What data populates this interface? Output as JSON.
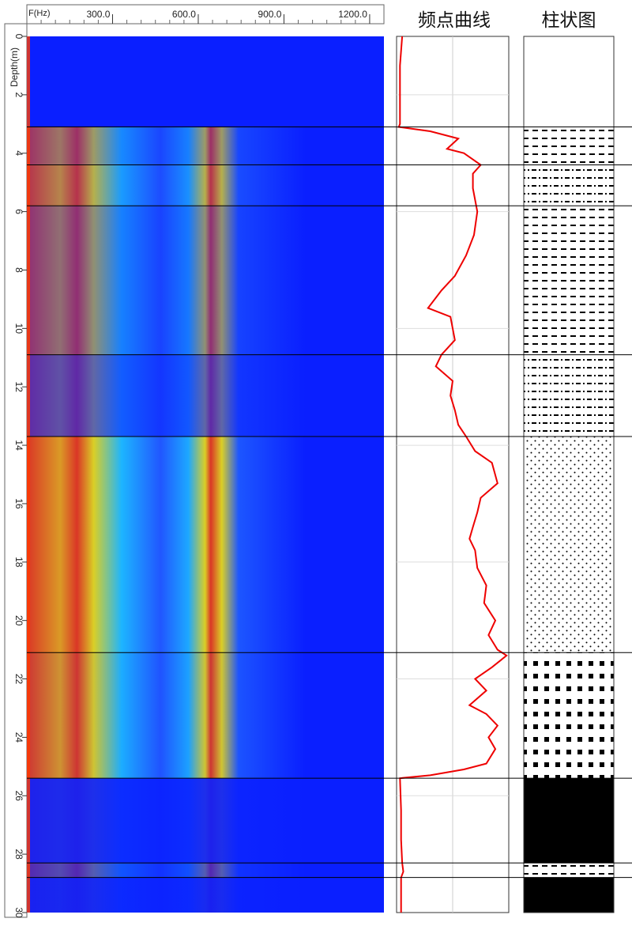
{
  "header": {
    "freq_axis_label": "F(Hz)",
    "freq_ticks": [
      "300.0",
      "600.0",
      "900.0",
      "1200.0"
    ],
    "depth_axis_label": "Depth(m)",
    "track_title": "频点曲线",
    "column_title": "柱状图"
  },
  "colors": {
    "background_blue": "#0a1fff",
    "high": "#ff3a00",
    "mid": "#ffee00",
    "low": "#20d0ff",
    "curve": "#ee0000",
    "boundary": "#000000"
  },
  "chart_data": [
    {
      "type": "heatmap",
      "x_axis": {
        "label": "F(Hz)",
        "range": [
          0,
          1200
        ],
        "ticks": [
          300,
          600,
          900,
          1200
        ]
      },
      "y_axis": {
        "label": "Depth(m)",
        "range": [
          0,
          30
        ],
        "ticks": [
          0,
          2,
          4,
          6,
          8,
          10,
          12,
          14,
          16,
          18,
          20,
          22,
          24,
          26,
          28,
          30
        ]
      },
      "depth_boundaries": [
        3.1,
        4.4,
        5.8,
        10.9,
        13.7,
        21.1,
        25.4,
        28.3,
        28.8
      ],
      "bands": [
        {
          "from": 0,
          "to": 3.1,
          "intensity": 0.0
        },
        {
          "from": 3.1,
          "to": 4.4,
          "intensity": 0.6
        },
        {
          "from": 4.4,
          "to": 5.8,
          "intensity": 0.7
        },
        {
          "from": 5.8,
          "to": 10.9,
          "intensity": 0.55
        },
        {
          "from": 10.9,
          "to": 13.7,
          "intensity": 0.35
        },
        {
          "from": 13.7,
          "to": 21.1,
          "intensity": 0.85
        },
        {
          "from": 21.1,
          "to": 25.4,
          "intensity": 0.8
        },
        {
          "from": 25.4,
          "to": 28.3,
          "intensity": 0.08
        },
        {
          "from": 28.3,
          "to": 28.8,
          "intensity": 0.3
        },
        {
          "from": 28.8,
          "to": 30,
          "intensity": 0.06
        }
      ]
    },
    {
      "type": "line",
      "title": "频点曲线",
      "y_axis": {
        "range": [
          0,
          30
        ]
      },
      "x_range": [
        0,
        1
      ],
      "points": [
        [
          0.05,
          0.0
        ],
        [
          0.03,
          1.0
        ],
        [
          0.03,
          2.0
        ],
        [
          0.03,
          3.0
        ],
        [
          0.02,
          3.1
        ],
        [
          0.3,
          3.25
        ],
        [
          0.55,
          3.5
        ],
        [
          0.45,
          3.85
        ],
        [
          0.6,
          4.0
        ],
        [
          0.75,
          4.4
        ],
        [
          0.68,
          4.7
        ],
        [
          0.68,
          5.2
        ],
        [
          0.72,
          6.0
        ],
        [
          0.69,
          6.8
        ],
        [
          0.62,
          7.5
        ],
        [
          0.52,
          8.2
        ],
        [
          0.4,
          8.7
        ],
        [
          0.28,
          9.3
        ],
        [
          0.48,
          9.6
        ],
        [
          0.5,
          10.0
        ],
        [
          0.52,
          10.4
        ],
        [
          0.4,
          10.9
        ],
        [
          0.35,
          11.3
        ],
        [
          0.5,
          11.8
        ],
        [
          0.48,
          12.3
        ],
        [
          0.52,
          12.8
        ],
        [
          0.55,
          13.3
        ],
        [
          0.62,
          13.7
        ],
        [
          0.7,
          14.2
        ],
        [
          0.85,
          14.6
        ],
        [
          0.9,
          15.3
        ],
        [
          0.75,
          15.8
        ],
        [
          0.72,
          16.3
        ],
        [
          0.68,
          16.8
        ],
        [
          0.65,
          17.2
        ],
        [
          0.7,
          17.6
        ],
        [
          0.72,
          18.2
        ],
        [
          0.8,
          18.8
        ],
        [
          0.78,
          19.4
        ],
        [
          0.88,
          20.0
        ],
        [
          0.82,
          20.5
        ],
        [
          0.9,
          21.0
        ],
        [
          0.98,
          21.2
        ],
        [
          0.85,
          21.6
        ],
        [
          0.7,
          22.0
        ],
        [
          0.8,
          22.4
        ],
        [
          0.65,
          22.9
        ],
        [
          0.8,
          23.2
        ],
        [
          0.9,
          23.6
        ],
        [
          0.82,
          24.0
        ],
        [
          0.88,
          24.4
        ],
        [
          0.8,
          24.9
        ],
        [
          0.6,
          25.1
        ],
        [
          0.3,
          25.3
        ],
        [
          0.03,
          25.4
        ],
        [
          0.04,
          26.5
        ],
        [
          0.04,
          27.5
        ],
        [
          0.05,
          28.3
        ],
        [
          0.06,
          28.6
        ],
        [
          0.04,
          28.8
        ],
        [
          0.04,
          30.0
        ]
      ]
    },
    {
      "type": "table",
      "title": "柱状图",
      "layers": [
        {
          "from": 0,
          "to": 3.1,
          "pattern": "blank"
        },
        {
          "from": 3.1,
          "to": 4.4,
          "pattern": "dash"
        },
        {
          "from": 4.4,
          "to": 5.8,
          "pattern": "dash-dot"
        },
        {
          "from": 5.8,
          "to": 10.9,
          "pattern": "dash"
        },
        {
          "from": 10.9,
          "to": 13.7,
          "pattern": "dash-dot"
        },
        {
          "from": 13.7,
          "to": 21.1,
          "pattern": "dots"
        },
        {
          "from": 21.1,
          "to": 25.4,
          "pattern": "squares"
        },
        {
          "from": 25.4,
          "to": 28.3,
          "pattern": "solid"
        },
        {
          "from": 28.3,
          "to": 28.8,
          "pattern": "dash"
        },
        {
          "from": 28.8,
          "to": 30,
          "pattern": "solid"
        }
      ]
    }
  ]
}
